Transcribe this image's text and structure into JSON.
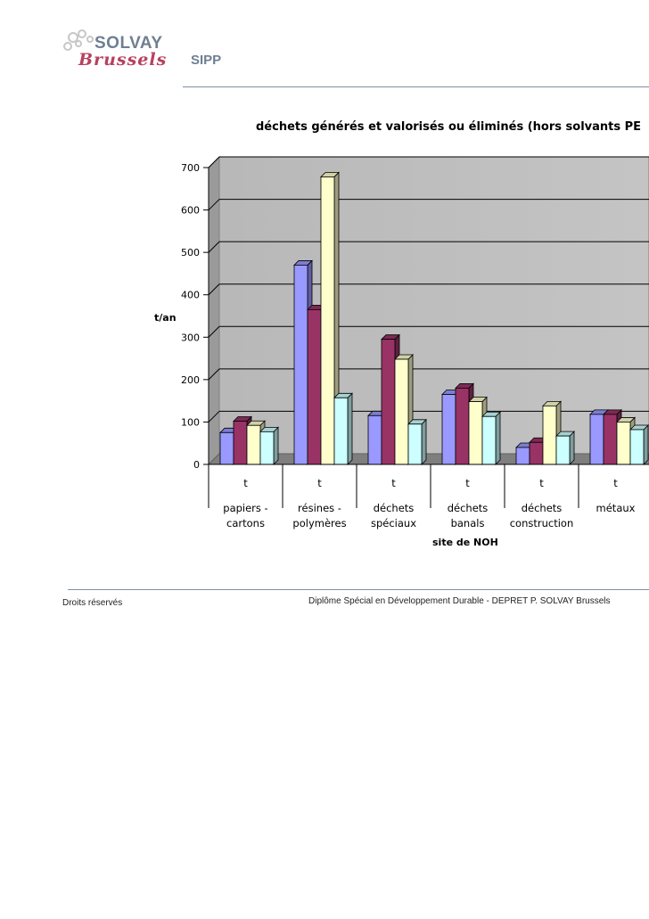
{
  "header": {
    "logo_primary": "SOLVAY",
    "logo_secondary": "Brussels",
    "logo_tertiary": "SIPP"
  },
  "footer": {
    "left": "Droits réservés",
    "center": "Diplôme Spécial en Développement Durable -  DEPRET P. SOLVAY Brussels"
  },
  "colors": {
    "series": [
      "#9999ff",
      "#993366",
      "#ffffcc",
      "#ccffff"
    ],
    "plot_background": "#c0c0c0"
  },
  "chart_data": {
    "type": "bar",
    "title": "déchets générés et valorisés ou éliminés (hors solvants PE",
    "xlabel": "site de NOH",
    "ylabel": "t/an",
    "ylim": [
      0,
      700
    ],
    "yticks": [
      0,
      100,
      200,
      300,
      400,
      500,
      600,
      700
    ],
    "grid": true,
    "style": "3d",
    "categories": [
      {
        "unit": "t",
        "line1": "papiers -",
        "line2": "cartons"
      },
      {
        "unit": "t",
        "line1": "résines -",
        "line2": "polymères"
      },
      {
        "unit": "t",
        "line1": "déchets",
        "line2": "spéciaux"
      },
      {
        "unit": "t",
        "line1": "déchets",
        "line2": "banals"
      },
      {
        "unit": "t",
        "line1": "déchets",
        "line2": "construction"
      },
      {
        "unit": "t",
        "line1": "métaux",
        "line2": ""
      }
    ],
    "series": [
      {
        "values": [
          75,
          470,
          115,
          165,
          40,
          118
        ]
      },
      {
        "values": [
          102,
          365,
          295,
          180,
          52,
          118
        ]
      },
      {
        "values": [
          92,
          678,
          248,
          148,
          138,
          100
        ]
      },
      {
        "values": [
          77,
          157,
          95,
          113,
          67,
          82
        ]
      }
    ]
  }
}
